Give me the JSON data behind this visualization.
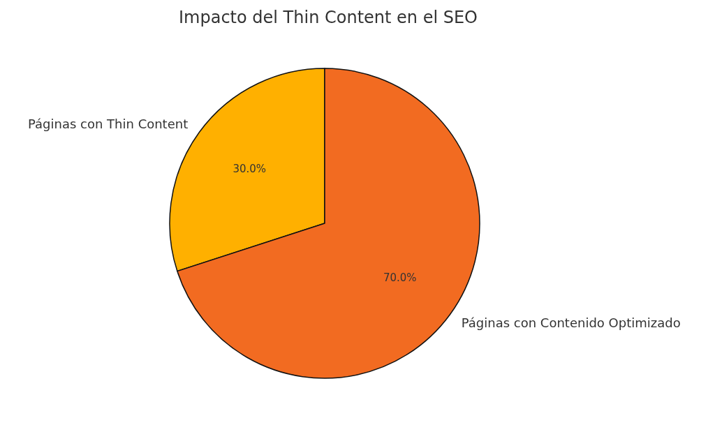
{
  "chart_data": {
    "type": "pie",
    "title": "Impacto del Thin Content en el SEO",
    "categories": [
      "Páginas con Thin Content",
      "Páginas con Contenido Optimizado"
    ],
    "values": [
      30,
      70
    ],
    "value_labels": [
      "30.0%",
      "70.0%"
    ],
    "colors": [
      "#ffb000",
      "#f26b21"
    ]
  }
}
